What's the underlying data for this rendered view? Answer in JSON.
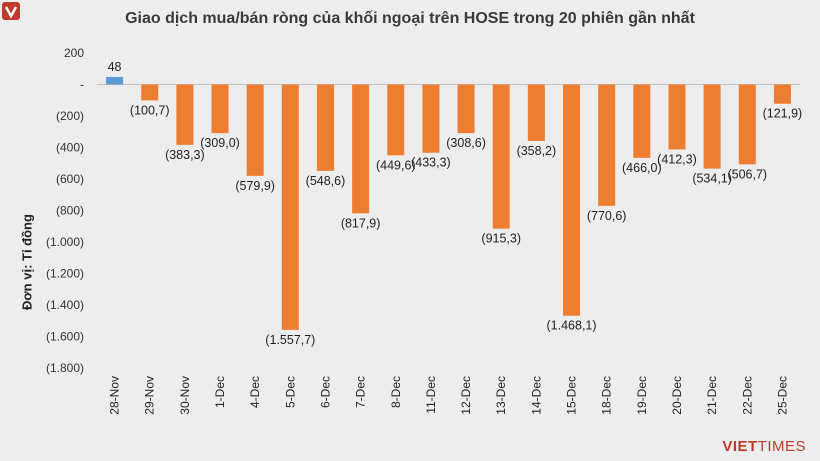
{
  "chart_data": {
    "type": "bar",
    "title": "Giao dịch mua/bán ròng của khối ngoại trên HOSE trong 20 phiên gần nhất",
    "ylabel": "Đơn vị: Tỉ đồng",
    "xlabel": "",
    "ylim": [
      -1800,
      200
    ],
    "yticks": [
      200,
      0,
      -200,
      -400,
      -600,
      -800,
      -1000,
      -1200,
      -1400,
      -1600,
      -1800
    ],
    "ytick_labels": [
      "200",
      "-",
      "(200)",
      "(400)",
      "(600)",
      "(800)",
      "(1.000)",
      "(1.200)",
      "(1.400)",
      "(1.600)",
      "(1.800)"
    ],
    "categories": [
      "28-Nov",
      "29-Nov",
      "30-Nov",
      "1-Dec",
      "4-Dec",
      "5-Dec",
      "6-Dec",
      "7-Dec",
      "8-Dec",
      "11-Dec",
      "12-Dec",
      "13-Dec",
      "14-Dec",
      "15-Dec",
      "18-Dec",
      "19-Dec",
      "20-Dec",
      "21-Dec",
      "22-Dec",
      "25-Dec"
    ],
    "values": [
      48,
      -100.7,
      -383.3,
      -309.0,
      -579.9,
      -1557.7,
      -548.6,
      -817.9,
      -449.6,
      -433.3,
      -308.6,
      -915.3,
      -358.2,
      -1468.1,
      -770.6,
      -466.0,
      -412.3,
      -534.1,
      -506.7,
      -121.9
    ],
    "data_labels": [
      "48",
      "(100,7)",
      "(383,3)",
      "(309,0)",
      "(579,9)",
      "(1.557,7)",
      "(548,6)",
      "(817,9)",
      "(449,6)",
      "(433,3)",
      "(308,6)",
      "(915,3)",
      "(358,2)",
      "(1.468,1)",
      "(770,6)",
      "(466,0)",
      "(412,3)",
      "(534,1)",
      "(506,7)",
      "(121,9)"
    ],
    "colors": {
      "positive": "#5b9bd5",
      "negative": "#ed7d31"
    },
    "grid": false
  },
  "logo": {
    "brand": "VIET",
    "suffix": "TIMES"
  }
}
